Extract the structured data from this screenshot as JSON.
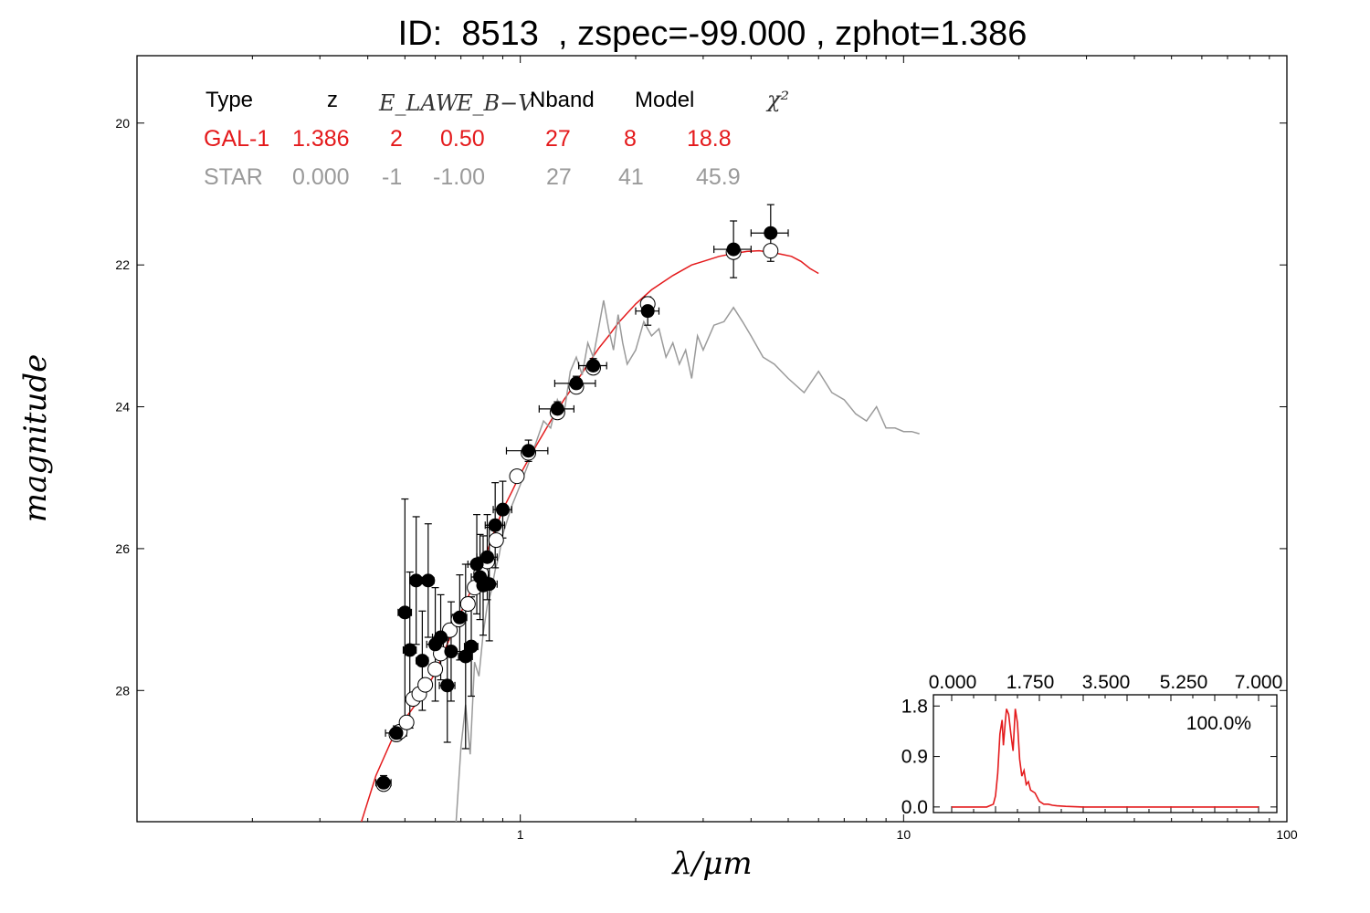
{
  "title": "ID:  8513  , zspec=-99.000 , zphot=1.386",
  "xlabel": "λ/μm",
  "ylabel": "magnitude",
  "colors": {
    "gal": "#e41a1c",
    "star": "#9a9a9a",
    "frame": "#000000"
  },
  "table": {
    "headers": [
      "Type",
      "z",
      "E_LAW",
      "E_B−V",
      "Nband",
      "Model",
      "χ²"
    ],
    "rows": [
      {
        "type": "GAL-1",
        "z": "1.386",
        "elaw": "2",
        "ebv": "0.50",
        "nband": "27",
        "model": "8",
        "chi2": "18.8"
      },
      {
        "type": "STAR",
        "z": "0.000",
        "elaw": "-1",
        "ebv": "-1.00",
        "nband": "27",
        "model": "41",
        "chi2": "45.9"
      }
    ]
  },
  "chart_data": [
    {
      "type": "scatter",
      "xscale": "log",
      "xlim": [
        0.1,
        100
      ],
      "ylim": [
        29.85,
        19.05
      ],
      "y_inverted": true,
      "xticks": [
        "1",
        "10",
        "100"
      ],
      "yticks": [
        "20",
        "22",
        "24",
        "26",
        "28"
      ],
      "xlabel": "λ/μm",
      "ylabel": "magnitude",
      "series": [
        {
          "kind": "observed",
          "points": [
            {
              "x": 0.44,
              "y": 29.3,
              "xe": 0.02,
              "ye": 0.1
            },
            {
              "x": 0.475,
              "y": 28.6,
              "xe": 0.03,
              "ye": 0.1
            },
            {
              "x": 0.5,
              "y": 26.9,
              "xe": 0.02,
              "ye": 1.6
            },
            {
              "x": 0.515,
              "y": 27.43,
              "xe": 0.02,
              "ye": 1.1
            },
            {
              "x": 0.535,
              "y": 26.45,
              "xe": 0.02,
              "ye": 0.9
            },
            {
              "x": 0.555,
              "y": 27.58,
              "xe": 0.02,
              "ye": 0.7
            },
            {
              "x": 0.575,
              "y": 26.45,
              "xe": 0.02,
              "ye": 0.8
            },
            {
              "x": 0.6,
              "y": 27.35,
              "xe": 0.03,
              "ye": 0.8
            },
            {
              "x": 0.62,
              "y": 27.25,
              "xe": 0.03,
              "ye": 0.6
            },
            {
              "x": 0.645,
              "y": 27.93,
              "xe": 0.03,
              "ye": 0.8
            },
            {
              "x": 0.66,
              "y": 27.45,
              "xe": 0.06,
              "ye": 0.7
            },
            {
              "x": 0.695,
              "y": 26.97,
              "xe": 0.03,
              "ye": 0.6
            },
            {
              "x": 0.72,
              "y": 27.52,
              "xe": 0.03,
              "ye": 1.3
            },
            {
              "x": 0.745,
              "y": 27.38,
              "xe": 0.03,
              "ye": 0.7
            },
            {
              "x": 0.77,
              "y": 26.22,
              "xe": 0.04,
              "ye": 0.7
            },
            {
              "x": 0.785,
              "y": 26.4,
              "xe": 0.04,
              "ye": 0.6
            },
            {
              "x": 0.8,
              "y": 26.52,
              "xe": 0.04,
              "ye": 0.7
            },
            {
              "x": 0.82,
              "y": 26.12,
              "xe": 0.05,
              "ye": 0.6
            },
            {
              "x": 0.83,
              "y": 26.5,
              "xe": 0.04,
              "ye": 0.8
            },
            {
              "x": 0.86,
              "y": 25.67,
              "xe": 0.05,
              "ye": 0.6
            },
            {
              "x": 0.9,
              "y": 25.45,
              "xe": 0.05,
              "ye": 0.4
            },
            {
              "x": 1.05,
              "y": 24.62,
              "xe": 0.13,
              "ye": 0.15
            },
            {
              "x": 1.25,
              "y": 24.03,
              "xe": 0.13,
              "ye": 0.1
            },
            {
              "x": 1.4,
              "y": 23.67,
              "xe": 0.17,
              "ye": 0.1
            },
            {
              "x": 1.55,
              "y": 23.42,
              "xe": 0.13,
              "ye": 0.1
            },
            {
              "x": 2.15,
              "y": 22.65,
              "xe": 0.15,
              "ye": 0.2
            },
            {
              "x": 3.6,
              "y": 21.78,
              "xe": 0.4,
              "ye": 0.4
            },
            {
              "x": 4.5,
              "y": 21.55,
              "xe": 0.5,
              "ye": 0.4
            }
          ]
        },
        {
          "kind": "model-photometry",
          "points": [
            {
              "x": 0.44,
              "y": 29.32
            },
            {
              "x": 0.475,
              "y": 28.62
            },
            {
              "x": 0.485,
              "y": 28.58
            },
            {
              "x": 0.505,
              "y": 28.45
            },
            {
              "x": 0.525,
              "y": 28.12
            },
            {
              "x": 0.545,
              "y": 28.05
            },
            {
              "x": 0.565,
              "y": 27.92
            },
            {
              "x": 0.6,
              "y": 27.7
            },
            {
              "x": 0.62,
              "y": 27.48
            },
            {
              "x": 0.655,
              "y": 27.15
            },
            {
              "x": 0.69,
              "y": 27.0
            },
            {
              "x": 0.73,
              "y": 26.78
            },
            {
              "x": 0.76,
              "y": 26.55
            },
            {
              "x": 0.79,
              "y": 26.35
            },
            {
              "x": 0.82,
              "y": 26.18
            },
            {
              "x": 0.865,
              "y": 25.88
            },
            {
              "x": 0.98,
              "y": 24.98
            },
            {
              "x": 1.05,
              "y": 24.65
            },
            {
              "x": 1.25,
              "y": 24.08
            },
            {
              "x": 1.4,
              "y": 23.72
            },
            {
              "x": 1.55,
              "y": 23.45
            },
            {
              "x": 2.15,
              "y": 22.55
            },
            {
              "x": 3.6,
              "y": 21.82
            },
            {
              "x": 4.5,
              "y": 21.8
            }
          ]
        },
        {
          "name": "GAL-1",
          "kind": "line",
          "color": "#e41a1c",
          "x": [
            0.38,
            0.42,
            0.46,
            0.5,
            0.55,
            0.6,
            0.65,
            0.7,
            0.75,
            0.8,
            0.85,
            0.9,
            0.95,
            1.0,
            1.1,
            1.2,
            1.3,
            1.4,
            1.5,
            1.6,
            1.7,
            1.8,
            2.0,
            2.2,
            2.5,
            2.8,
            3.0,
            3.3,
            3.6,
            3.9,
            4.2,
            4.5,
            4.8,
            5.1,
            5.4,
            5.7,
            6.0
          ],
          "y": [
            29.95,
            29.2,
            28.72,
            28.4,
            28.1,
            27.75,
            27.3,
            26.9,
            26.55,
            26.2,
            25.8,
            25.45,
            25.2,
            24.95,
            24.55,
            24.2,
            23.9,
            23.65,
            23.4,
            23.18,
            23.0,
            22.82,
            22.55,
            22.35,
            22.15,
            22.0,
            21.95,
            21.88,
            21.84,
            21.81,
            21.8,
            21.82,
            21.85,
            21.88,
            21.95,
            22.05,
            22.12
          ]
        },
        {
          "name": "STAR",
          "kind": "line",
          "color": "#9a9a9a",
          "x": [
            0.68,
            0.7,
            0.72,
            0.74,
            0.76,
            0.78,
            0.8,
            0.82,
            0.84,
            0.86,
            0.88,
            0.9,
            0.95,
            1.0,
            1.05,
            1.1,
            1.15,
            1.2,
            1.25,
            1.3,
            1.35,
            1.4,
            1.45,
            1.5,
            1.55,
            1.6,
            1.65,
            1.7,
            1.75,
            1.8,
            1.85,
            1.9,
            2.0,
            2.1,
            2.2,
            2.3,
            2.4,
            2.5,
            2.6,
            2.7,
            2.8,
            2.9,
            3.0,
            3.2,
            3.4,
            3.6,
            3.8,
            4.0,
            4.3,
            4.6,
            5.0,
            5.5,
            6.0,
            6.5,
            7.0,
            7.5,
            8.0,
            8.5,
            9.0,
            9.5,
            10.0,
            10.5,
            11.0
          ],
          "y": [
            29.85,
            28.8,
            28.2,
            28.9,
            27.6,
            27.8,
            27.2,
            26.8,
            26.6,
            26.3,
            26.1,
            25.8,
            25.4,
            25.1,
            24.8,
            24.5,
            24.2,
            24.3,
            23.9,
            24.1,
            23.5,
            23.3,
            23.55,
            23.1,
            23.3,
            22.9,
            22.5,
            22.9,
            23.2,
            22.7,
            23.1,
            23.4,
            23.2,
            22.8,
            23.0,
            22.9,
            23.3,
            23.1,
            23.4,
            23.2,
            23.6,
            23.0,
            23.2,
            22.85,
            22.8,
            22.6,
            22.8,
            23.0,
            23.3,
            23.4,
            23.6,
            23.8,
            23.5,
            23.8,
            23.9,
            24.1,
            24.2,
            24.0,
            24.3,
            24.3,
            24.35,
            24.35,
            24.38
          ]
        }
      ]
    },
    {
      "type": "line",
      "name": "inset",
      "xlim": [
        0,
        7
      ],
      "ylim": [
        -0.1,
        2.0
      ],
      "xticks": [
        "0.000",
        "1.750",
        "3.500",
        "5.250",
        "7.000"
      ],
      "yticks": [
        "0.0",
        "0.9",
        "1.8"
      ],
      "annotation": "100.0%",
      "x": [
        0.0,
        0.8,
        0.95,
        1.0,
        1.05,
        1.1,
        1.15,
        1.18,
        1.22,
        1.25,
        1.3,
        1.35,
        1.4,
        1.45,
        1.5,
        1.55,
        1.6,
        1.65,
        1.7,
        1.75,
        1.8,
        1.9,
        2.0,
        2.1,
        2.2,
        2.3,
        2.4,
        2.6,
        3.0,
        4.0,
        5.0,
        6.0,
        7.0
      ],
      "y": [
        0.0,
        0.0,
        0.05,
        0.2,
        0.6,
        1.3,
        1.55,
        1.1,
        1.5,
        1.75,
        1.65,
        1.3,
        1.0,
        1.75,
        1.5,
        0.85,
        0.55,
        0.65,
        0.4,
        0.45,
        0.3,
        0.25,
        0.1,
        0.05,
        0.05,
        0.03,
        0.02,
        0.01,
        0.0,
        0.0,
        0.0,
        0.0,
        0.0
      ]
    }
  ]
}
